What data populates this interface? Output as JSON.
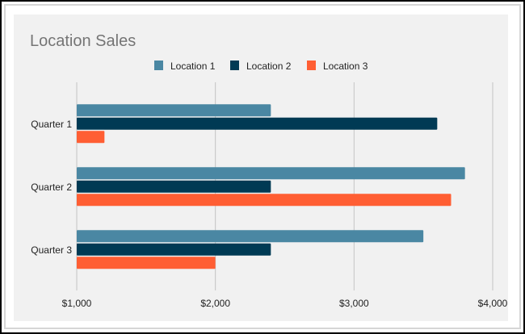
{
  "chart_data": {
    "type": "bar",
    "orientation": "horizontal",
    "title": "Location Sales",
    "xlabel": "",
    "ylabel": "",
    "categories": [
      "Quarter 1",
      "Quarter 2",
      "Quarter 3"
    ],
    "series": [
      {
        "name": "Location 1",
        "color": "#4a87a3",
        "values": [
          2400,
          3800,
          3500
        ]
      },
      {
        "name": "Location 2",
        "color": "#003a54",
        "values": [
          3600,
          2400,
          2400
        ]
      },
      {
        "name": "Location 3",
        "color": "#ff5e33",
        "values": [
          1200,
          3700,
          2000
        ]
      }
    ],
    "xlim": [
      1000,
      4000
    ],
    "xticks": [
      1000,
      2000,
      3000,
      4000
    ],
    "xtick_labels": [
      "$1,000",
      "$2,000",
      "$3,000",
      "$4,000"
    ],
    "grid": true,
    "legend_position": "top-center",
    "background": "#f1f1f1"
  }
}
